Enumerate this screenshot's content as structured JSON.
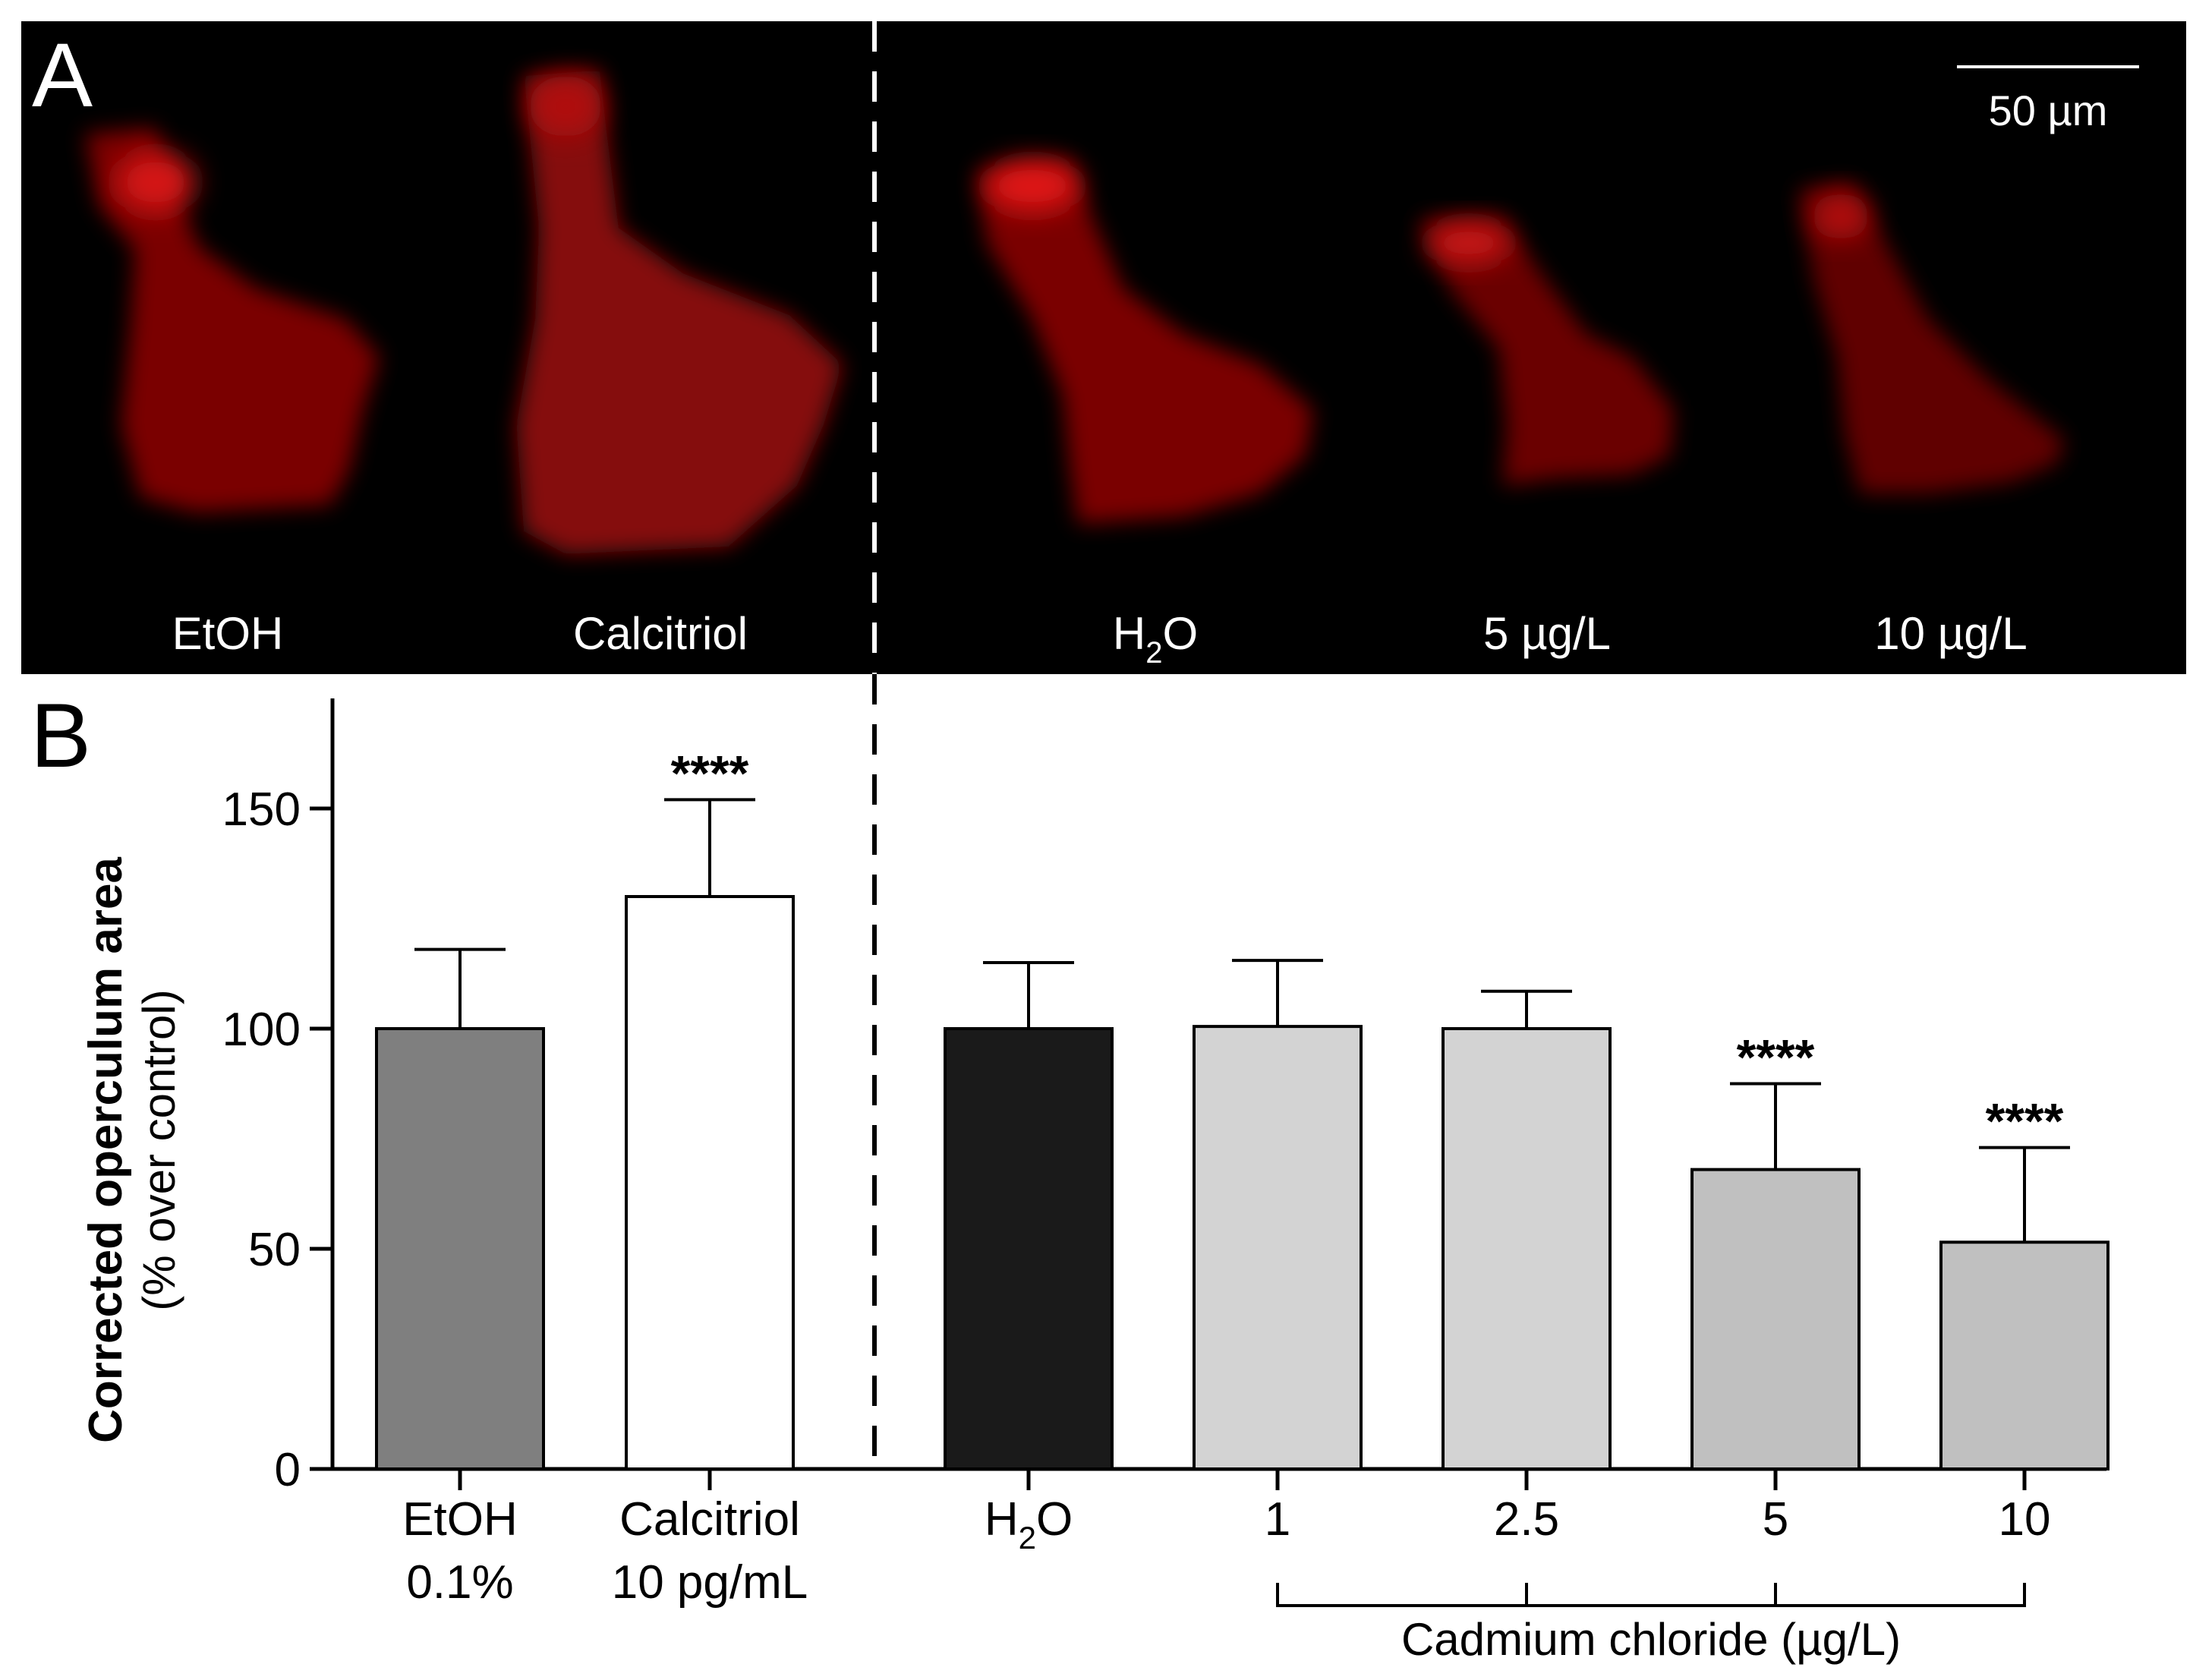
{
  "panel_a": {
    "letter": "A",
    "scale_bar_label": "50 µm",
    "images": [
      {
        "label": "EtOH"
      },
      {
        "label": "Calcitriol"
      },
      {
        "label_main": "H",
        "label_sub": "2",
        "label_tail": "O"
      },
      {
        "label": "5 µg/L"
      },
      {
        "label": "10 µg/L"
      }
    ]
  },
  "chart_data": {
    "type": "bar",
    "panel_letter": "B",
    "ylabel": "Corrected operculum area",
    "ylabel2": "(% over control)",
    "ylim": [
      0,
      175
    ],
    "yticks": [
      0,
      50,
      100,
      150
    ],
    "group_label": "Cadmium chloride (µg/L)",
    "bars": [
      {
        "label_line1": "EtOH",
        "label_line2": "0.1%",
        "value": 100,
        "error": 18,
        "color": "#7f7f7f",
        "sig": ""
      },
      {
        "label_line1": "Calcitriol",
        "label_line2": "10 pg/mL",
        "value": 130,
        "error": 22,
        "color": "#ffffff",
        "sig": "****"
      },
      {
        "label_main": "H",
        "label_sub": "2",
        "label_tail": "O",
        "value": 100,
        "error": 15,
        "color": "#1a1a1a",
        "sig": ""
      },
      {
        "label_line1": "1",
        "value": 100.5,
        "error": 15,
        "color": "#d3d3d3",
        "sig": ""
      },
      {
        "label_line1": "2.5",
        "value": 100,
        "error": 8.5,
        "color": "#d3d3d3",
        "sig": ""
      },
      {
        "label_line1": "5",
        "value": 68,
        "error": 19.5,
        "color": "#c0c0c0",
        "sig": "****"
      },
      {
        "label_line1": "10",
        "value": 51.5,
        "error": 21.5,
        "color": "#c0c0c0",
        "sig": "****"
      }
    ]
  }
}
